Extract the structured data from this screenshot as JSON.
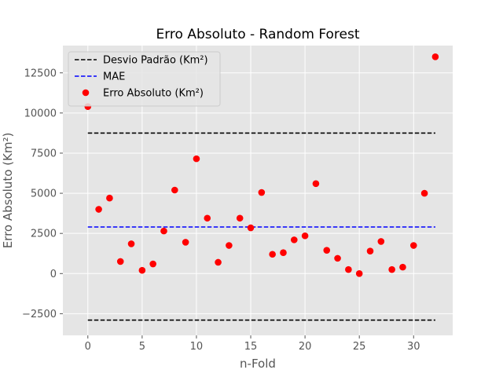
{
  "chart_data": {
    "type": "scatter",
    "title": "Erro Absoluto - Random Forest",
    "xlabel": "n-Fold",
    "ylabel": "Erro Absoluto (Km²)",
    "xlim": [
      -2.3,
      33.6
    ],
    "ylim": [
      -3850,
      14200
    ],
    "xticks": [
      0,
      5,
      10,
      15,
      20,
      25,
      30
    ],
    "yticks": [
      -2500,
      0,
      2500,
      5000,
      7500,
      10000,
      12500
    ],
    "grid": true,
    "legend_position": "top-left",
    "series": [
      {
        "name": "Desvio Padrão (Km²)",
        "kind": "hline",
        "color": "#000000",
        "dash": true,
        "values": [
          8750,
          -2900
        ],
        "x_range": [
          0,
          32
        ]
      },
      {
        "name": "MAE",
        "kind": "hline",
        "color": "#0000ff",
        "dash": true,
        "values": [
          2900
        ],
        "x_range": [
          0,
          32
        ]
      },
      {
        "name": "Erro Absoluto (Km²)",
        "kind": "scatter",
        "color": "#ff0000",
        "x": [
          0,
          1,
          2,
          3,
          4,
          5,
          6,
          7,
          8,
          9,
          10,
          11,
          12,
          13,
          14,
          15,
          16,
          17,
          18,
          19,
          20,
          21,
          22,
          23,
          24,
          25,
          26,
          27,
          28,
          29,
          30,
          31,
          32
        ],
        "y": [
          10400,
          4000,
          4700,
          750,
          1850,
          200,
          600,
          2650,
          5200,
          1950,
          7150,
          3450,
          700,
          1750,
          3450,
          2850,
          5050,
          1200,
          1300,
          2100,
          2350,
          5600,
          1450,
          950,
          250,
          0,
          1400,
          2000,
          250,
          400,
          1750,
          5000,
          13500
        ]
      }
    ]
  }
}
